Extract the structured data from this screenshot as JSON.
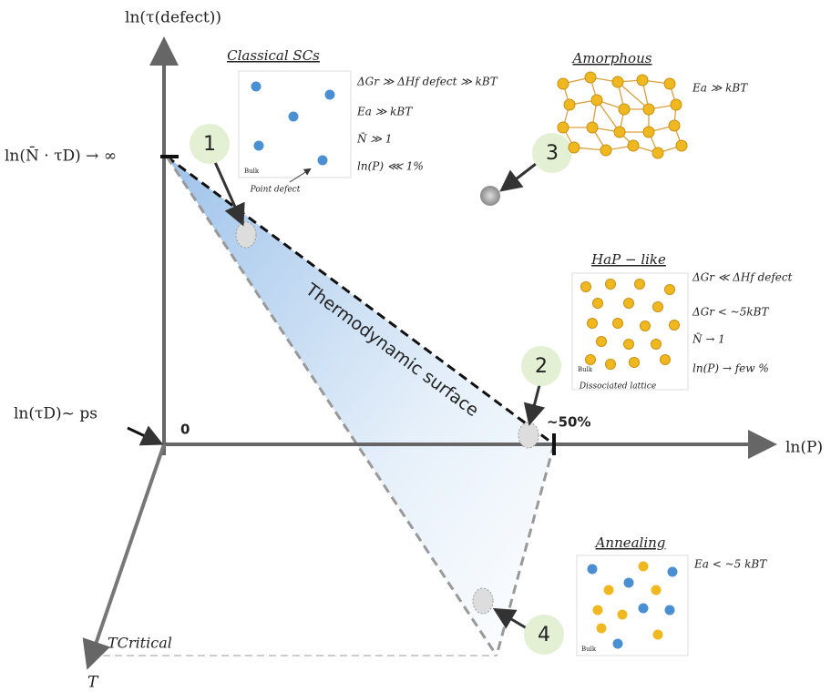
{
  "axes": {
    "y": "ln(τ(defect))",
    "x": "ln(P)",
    "z": "T",
    "y_top": "ln(N̄ · τD) → ∞",
    "origin": "ln(τD)~ ps",
    "zero": "0",
    "x_mark": "~50%",
    "t_critical": "TCritical"
  },
  "surface_label": "Thermodynamic surface",
  "markers": [
    "1",
    "2",
    "3",
    "4"
  ],
  "panels": {
    "classical": {
      "title": "Classical SCs",
      "bulk": "Bulk",
      "caption": "Point defect",
      "equations": [
        "ΔGr ≫ ΔHf defect ≫ kBT",
        "Ea ≫ kBT",
        "N̄ ≫ 1",
        "ln(P) ⋘ 1%"
      ]
    },
    "amorphous": {
      "title": "Amorphous",
      "equations": [
        "Ea ≫ kBT"
      ]
    },
    "hap": {
      "title": "HaP − like",
      "bulk": "Bulk",
      "caption": "Dissociated lattice",
      "equations": [
        "ΔGr ≪ ΔHf defect",
        "ΔGr < ~5kBT",
        "N̄ → 1",
        "ln(P) → few %"
      ]
    },
    "annealing": {
      "title": "Annealing",
      "bulk": "Bulk",
      "equations": [
        "Ea < ~5 kBT"
      ]
    }
  }
}
